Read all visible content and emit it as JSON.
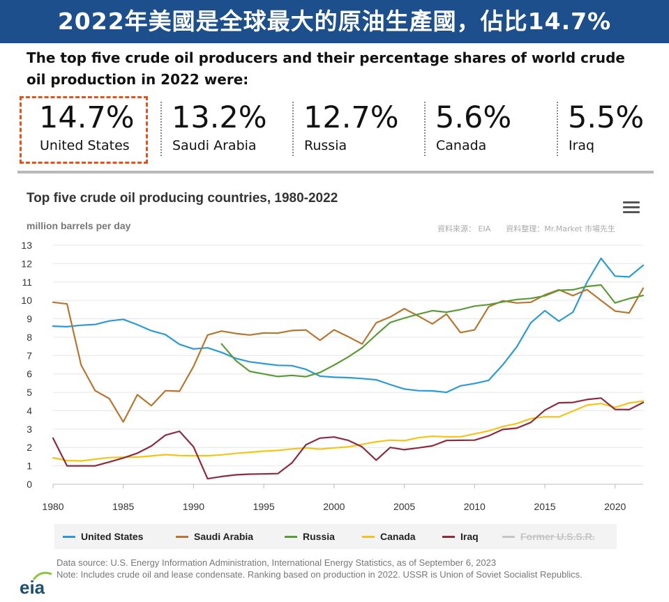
{
  "banner": {
    "title": "2022年美國是全球最大的原油生產國，佔比14.7%"
  },
  "intro": {
    "text": "The top five crude oil producers and their percentage shares of world crude oil production in 2022 were:"
  },
  "stats": [
    {
      "pct": "14.7%",
      "country": "United States"
    },
    {
      "pct": "13.2%",
      "country": "Saudi Arabia"
    },
    {
      "pct": "12.7%",
      "country": "Russia"
    },
    {
      "pct": "5.6%",
      "country": "Canada"
    },
    {
      "pct": "5.5%",
      "country": "Iraq"
    }
  ],
  "credits": {
    "source": "資料來源： EIA",
    "editor": "資料整理：Mr.Market 市場先生"
  },
  "footer": {
    "source": "Data source: U.S. Energy Information Administration, International Energy Statistics, as of September 6, 2023",
    "note": "Note: Includes crude oil and lease condensate. Ranking based on production in 2022. USSR is Union of Soviet Socialist Republics.",
    "logo_text": "eia"
  },
  "chart_data": {
    "type": "line",
    "title": "Top five crude oil producing countries, 1980-2022",
    "ylabel": "million barrels per day",
    "xlabel": "",
    "xlim": [
      1980,
      2022
    ],
    "ylim": [
      0,
      13
    ],
    "x_ticks": [
      1980,
      1985,
      1990,
      1995,
      2000,
      2005,
      2010,
      2015,
      2020
    ],
    "y_ticks": [
      0,
      1,
      2,
      3,
      4,
      5,
      6,
      7,
      8,
      9,
      10,
      11,
      12,
      13
    ],
    "grid": true,
    "legend_position": "bottom",
    "series": [
      {
        "name": "United States",
        "color": "#2a9ad6",
        "start": 1980,
        "values": [
          8.6,
          8.57,
          8.65,
          8.69,
          8.88,
          8.97,
          8.68,
          8.35,
          8.14,
          7.61,
          7.36,
          7.42,
          7.17,
          6.85,
          6.66,
          6.56,
          6.47,
          6.45,
          6.25,
          5.88,
          5.82,
          5.8,
          5.75,
          5.68,
          5.42,
          5.18,
          5.09,
          5.08,
          5.0,
          5.35,
          5.48,
          5.65,
          6.49,
          7.47,
          8.78,
          9.44,
          8.87,
          9.36,
          10.99,
          12.29,
          11.32,
          11.28,
          11.91
        ]
      },
      {
        "name": "Saudi Arabia",
        "color": "#b8752e",
        "start": 1980,
        "values": [
          9.9,
          9.81,
          6.48,
          5.09,
          4.66,
          3.39,
          4.87,
          4.27,
          5.09,
          5.06,
          6.41,
          8.12,
          8.33,
          8.2,
          8.12,
          8.23,
          8.22,
          8.36,
          8.39,
          7.83,
          8.4,
          8.03,
          7.63,
          8.78,
          9.1,
          9.55,
          9.15,
          8.72,
          9.26,
          8.25,
          8.4,
          9.65,
          9.98,
          9.86,
          9.9,
          10.3,
          10.58,
          10.26,
          10.59,
          10.0,
          9.42,
          9.32,
          10.66
        ]
      },
      {
        "name": "Russia",
        "color": "#5a9b36",
        "start": 1992,
        "values": [
          7.63,
          6.73,
          6.14,
          6.0,
          5.86,
          5.92,
          5.85,
          6.08,
          6.48,
          6.92,
          7.42,
          8.13,
          8.8,
          9.04,
          9.25,
          9.44,
          9.36,
          9.5,
          9.69,
          9.77,
          9.92,
          10.05,
          10.11,
          10.25,
          10.55,
          10.58,
          10.76,
          10.84,
          9.86,
          10.1,
          10.27
        ]
      },
      {
        "name": "Canada",
        "color": "#f5c316",
        "start": 1980,
        "values": [
          1.44,
          1.29,
          1.27,
          1.36,
          1.45,
          1.47,
          1.48,
          1.54,
          1.61,
          1.56,
          1.55,
          1.55,
          1.6,
          1.68,
          1.74,
          1.8,
          1.84,
          1.92,
          1.98,
          1.91,
          1.98,
          2.03,
          2.17,
          2.31,
          2.4,
          2.37,
          2.53,
          2.61,
          2.58,
          2.58,
          2.74,
          2.9,
          3.14,
          3.3,
          3.57,
          3.67,
          3.66,
          3.98,
          4.3,
          4.39,
          4.18,
          4.42,
          4.53
        ]
      },
      {
        "name": "Iraq",
        "color": "#8c2a3e",
        "start": 1980,
        "values": [
          2.51,
          1.0,
          1.0,
          1.0,
          1.21,
          1.43,
          1.69,
          2.08,
          2.67,
          2.88,
          2.04,
          0.3,
          0.42,
          0.51,
          0.55,
          0.56,
          0.58,
          1.16,
          2.15,
          2.51,
          2.57,
          2.39,
          2.03,
          1.31,
          2.0,
          1.88,
          1.98,
          2.09,
          2.38,
          2.39,
          2.4,
          2.63,
          2.98,
          3.05,
          3.36,
          4.03,
          4.43,
          4.45,
          4.61,
          4.69,
          4.07,
          4.06,
          4.45
        ]
      },
      {
        "name": "Former U.S.S.R.",
        "color": "#c4c4c4",
        "start": 1980,
        "values": [],
        "hidden": true
      }
    ]
  }
}
